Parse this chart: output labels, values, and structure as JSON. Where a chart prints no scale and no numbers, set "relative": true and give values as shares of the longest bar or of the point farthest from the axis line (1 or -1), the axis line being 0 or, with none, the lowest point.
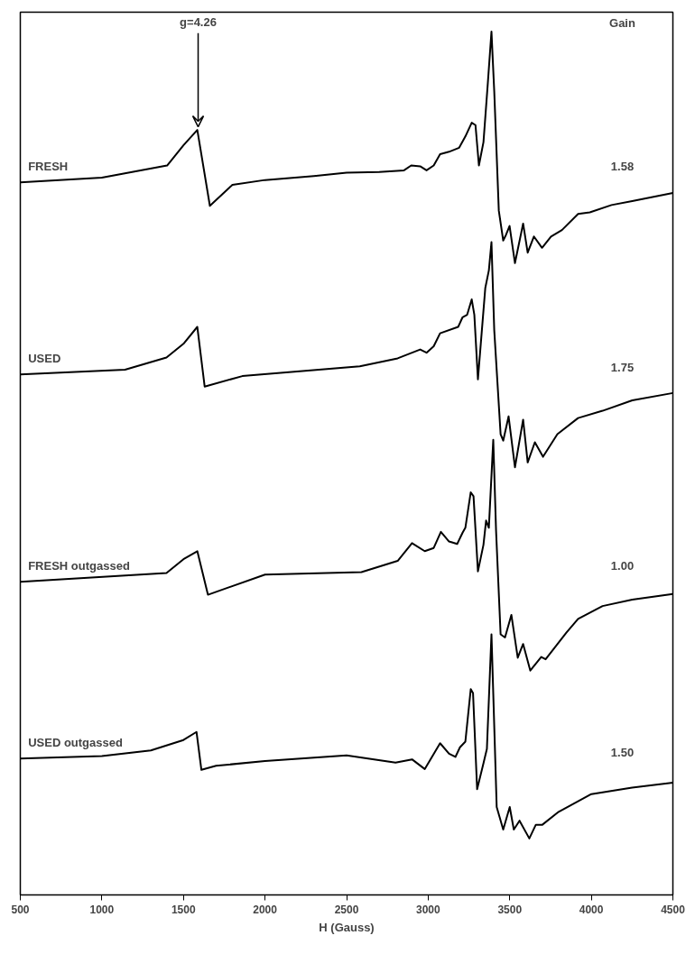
{
  "chart_data": {
    "type": "line",
    "relative": true,
    "xlabel": "H (Gauss)",
    "xlim": [
      500,
      4500
    ],
    "xticks": [
      500,
      1000,
      1500,
      2000,
      2500,
      3000,
      3500,
      4000,
      4500
    ],
    "tick_labels": "x",
    "grid": false,
    "marker": "none",
    "line_style": "solid",
    "series": [
      {
        "name": "FRESH",
        "color": "#000000",
        "x": [
          500,
          1000,
          1400,
          1500,
          1585,
          1662,
          1800,
          2000,
          2300,
          2500,
          2700,
          2852,
          2896,
          2951,
          2990,
          3034,
          3073,
          3128,
          3190,
          3228,
          3267,
          3290,
          3311,
          3339,
          3366,
          3388,
          3405,
          3433,
          3460,
          3477,
          3499,
          3532,
          3582,
          3610,
          3648,
          3698,
          3753,
          3820,
          3919,
          3991,
          4124,
          4251,
          4500
        ],
        "values": [
          0.813,
          0.819,
          0.834,
          0.859,
          0.878,
          0.784,
          0.81,
          0.816,
          0.821,
          0.825,
          0.826,
          0.828,
          0.834,
          0.833,
          0.828,
          0.834,
          0.848,
          0.851,
          0.856,
          0.87,
          0.887,
          0.884,
          0.834,
          0.863,
          0.937,
          1.0,
          0.926,
          0.778,
          0.741,
          0.748,
          0.759,
          0.713,
          0.762,
          0.726,
          0.746,
          0.732,
          0.746,
          0.754,
          0.774,
          0.776,
          0.785,
          0.79,
          0.8
        ]
      },
      {
        "name": "USED",
        "color": "#000000",
        "x": [
          500,
          1142,
          1396,
          1500,
          1585,
          1630,
          1861,
          2581,
          2813,
          2951,
          2990,
          3034,
          3073,
          3184,
          3211,
          3239,
          3267,
          3283,
          3305,
          3350,
          3372,
          3388,
          3405,
          3444,
          3460,
          3493,
          3532,
          3582,
          3610,
          3654,
          3704,
          3792,
          3919,
          4069,
          4251,
          4500
        ],
        "values": [
          0.575,
          0.581,
          0.596,
          0.613,
          0.634,
          0.56,
          0.573,
          0.585,
          0.595,
          0.606,
          0.602,
          0.61,
          0.626,
          0.634,
          0.646,
          0.649,
          0.668,
          0.649,
          0.569,
          0.682,
          0.704,
          0.739,
          0.63,
          0.501,
          0.493,
          0.523,
          0.46,
          0.519,
          0.466,
          0.491,
          0.473,
          0.501,
          0.521,
          0.53,
          0.543,
          0.552
        ]
      },
      {
        "name": "FRESH outgassed",
        "color": "#000000",
        "x": [
          500,
          1396,
          1500,
          1585,
          1650,
          2000,
          2591,
          2813,
          2901,
          2979,
          3034,
          3078,
          3128,
          3178,
          3211,
          3228,
          3261,
          3278,
          3305,
          3339,
          3355,
          3372,
          3399,
          3416,
          3444,
          3471,
          3510,
          3549,
          3582,
          3626,
          3693,
          3720,
          3847,
          3919,
          4069,
          4251,
          4500
        ],
        "values": [
          0.318,
          0.329,
          0.346,
          0.356,
          0.302,
          0.327,
          0.33,
          0.344,
          0.366,
          0.356,
          0.36,
          0.38,
          0.368,
          0.365,
          0.379,
          0.385,
          0.429,
          0.424,
          0.331,
          0.364,
          0.394,
          0.385,
          0.494,
          0.382,
          0.253,
          0.249,
          0.277,
          0.224,
          0.241,
          0.208,
          0.225,
          0.222,
          0.255,
          0.272,
          0.288,
          0.296,
          0.303
        ]
      },
      {
        "name": "USED outgassed",
        "color": "#000000",
        "x": [
          500,
          1000,
          1300,
          1500,
          1580,
          1610,
          1700,
          2000,
          2500,
          2800,
          2901,
          2979,
          3073,
          3128,
          3167,
          3195,
          3228,
          3261,
          3275,
          3300,
          3340,
          3360,
          3388,
          3420,
          3460,
          3500,
          3525,
          3560,
          3620,
          3660,
          3700,
          3800,
          4000,
          4250,
          4500
        ],
        "values": [
          0.099,
          0.102,
          0.109,
          0.122,
          0.132,
          0.085,
          0.09,
          0.096,
          0.103,
          0.094,
          0.098,
          0.086,
          0.118,
          0.105,
          0.101,
          0.113,
          0.12,
          0.185,
          0.18,
          0.061,
          0.094,
          0.111,
          0.253,
          0.039,
          0.011,
          0.039,
          0.011,
          0.022,
          0.0,
          0.017,
          0.017,
          0.033,
          0.055,
          0.063,
          0.069
        ]
      }
    ],
    "annotations": [
      {
        "text": "g=4.26",
        "x": 1590,
        "y": 0.878
      },
      "Gain",
      "1.58",
      "1.75",
      "1.00",
      "1.50"
    ]
  }
}
